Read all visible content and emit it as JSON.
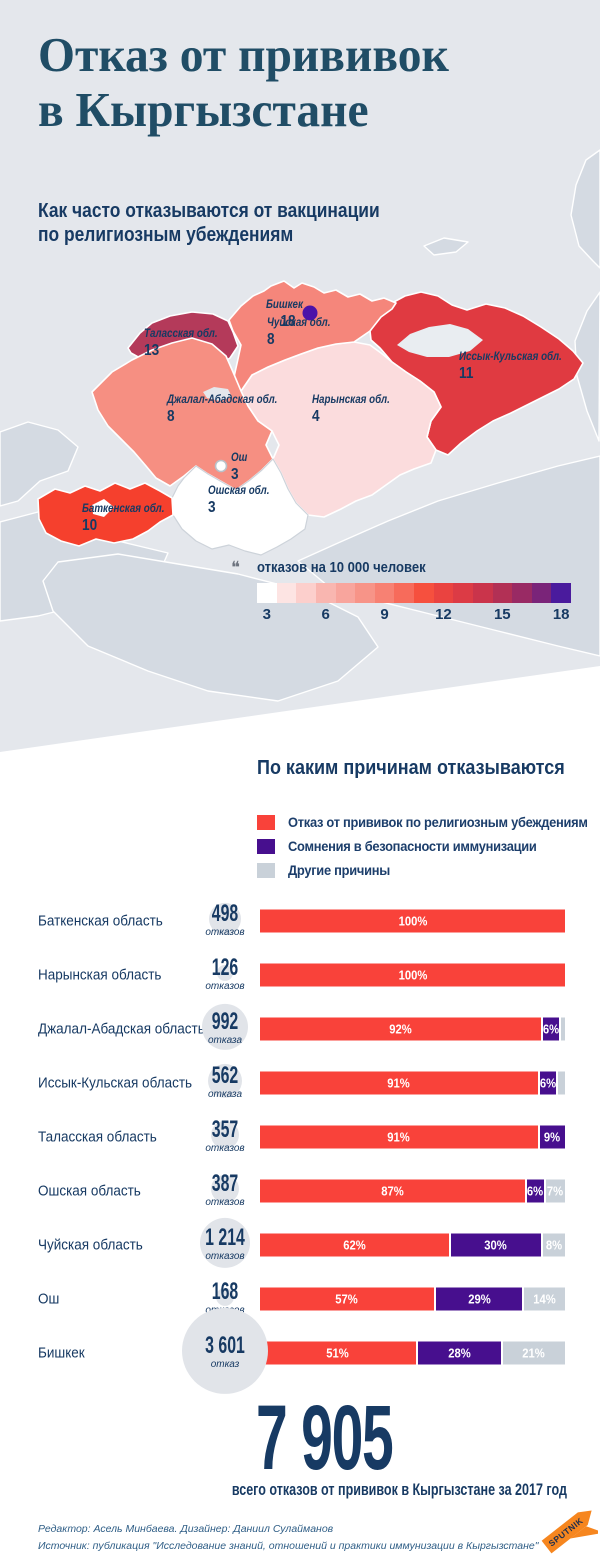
{
  "header": {
    "title_line1": "Отказ от прививок",
    "title_line2": "в Кыргызстане",
    "subtitle_line1": "Как часто отказываются от вакцинации",
    "subtitle_line2": "по религиозным убеждениям"
  },
  "map": {
    "legend_title": "отказов на 10 000 человек",
    "scale_ticks": [
      "3",
      "6",
      "9",
      "12",
      "15",
      "18"
    ],
    "scale_tick_values": [
      3,
      6,
      9,
      12,
      15,
      18
    ],
    "scale_colors": [
      "#ffffff",
      "#fde4e3",
      "#fccfcc",
      "#f9b6b0",
      "#f8a59d",
      "#f79488",
      "#f78173",
      "#f76b5b",
      "#f6503e",
      "#ea4340",
      "#dc3b45",
      "#ca344b",
      "#b23055",
      "#992a64",
      "#7a2479",
      "#4a1b9d"
    ],
    "regions": [
      {
        "id": "bishkek",
        "name": "Бишкек",
        "value": "18",
        "color": "#4b12a8"
      },
      {
        "id": "talas",
        "name": "Таласская обл.",
        "value": "13",
        "color": "#b43a5a"
      },
      {
        "id": "chui",
        "name": "Чуйская обл.",
        "value": "8",
        "color": "#f5867b"
      },
      {
        "id": "issyk-kul",
        "name": "Иссык-Кульская обл.",
        "value": "11",
        "color": "#e03a41"
      },
      {
        "id": "jalal-abad",
        "name": "Джалал-Абадская обл.",
        "value": "8",
        "color": "#f68f82"
      },
      {
        "id": "naryn",
        "name": "Нарынская обл.",
        "value": "4",
        "color": "#fbdcdd"
      },
      {
        "id": "osh-city",
        "name": "Ош",
        "value": "3",
        "color": "#ffffff"
      },
      {
        "id": "osh-region",
        "name": "Ошская обл.",
        "value": "3",
        "color": "#ffffff"
      },
      {
        "id": "batken",
        "name": "Баткенская обл.",
        "value": "10",
        "color": "#f5402d"
      }
    ]
  },
  "reasons": {
    "title": "По каким причинам отказываются",
    "legend": [
      {
        "label": "Отказ от прививок по религиозным убеждениям",
        "color": "#f9423a"
      },
      {
        "label": "Сомнения в безопасности иммунизации",
        "color": "#470f8e"
      },
      {
        "label": "Другие причины",
        "color": "#c9d1d9"
      }
    ],
    "rows": [
      {
        "region": "Баткенская область",
        "count": "498",
        "count_word": "отказов",
        "segments": [
          100,
          0,
          0
        ]
      },
      {
        "region": "Нарынская область",
        "count": "126",
        "count_word": "отказов",
        "segments": [
          100,
          0,
          0
        ]
      },
      {
        "region": "Джалал-Абадская область",
        "count": "992",
        "count_word": "отказа",
        "segments": [
          92,
          6,
          2
        ]
      },
      {
        "region": "Иссык-Кульская область",
        "count": "562",
        "count_word": "отказа",
        "segments": [
          91,
          6,
          3
        ]
      },
      {
        "region": "Таласская область",
        "count": "357",
        "count_word": "отказов",
        "segments": [
          91,
          9,
          0
        ]
      },
      {
        "region": "Ошская область",
        "count": "387",
        "count_word": "отказов",
        "segments": [
          87,
          6,
          7
        ]
      },
      {
        "region": "Чуйская область",
        "count": "1 214",
        "count_word": "отказов",
        "segments": [
          62,
          30,
          8
        ]
      },
      {
        "region": "Ош",
        "count": "168",
        "count_word": "отказов",
        "segments": [
          57,
          29,
          14
        ]
      },
      {
        "region": "Бишкек",
        "count": "3 601",
        "count_word": "отказ",
        "segments": [
          51,
          28,
          21
        ]
      }
    ]
  },
  "total": {
    "value": "7 905",
    "caption": "всего отказов от прививок в Кыргызстане за 2017 год"
  },
  "footer": {
    "line1": "Редактор: Асель Минбаева. Дизайнер: Даниил Сулайманов",
    "line2": "Источник: публикация \"Исследование знаний, отношений и практики иммунизации в Кыргызстане\"",
    "logo_text": "SPUTNIK",
    "logo_color": "#f6861f"
  },
  "chart_data": [
    {
      "type": "heatmap",
      "subtype": "choropleth-map",
      "title": "Как часто отказываются от вакцинации по религиозным убеждениям",
      "unit": "отказов на 10 000 человек",
      "scale_range": [
        3,
        18
      ],
      "regions": [
        {
          "name": "Бишкек",
          "value": 18
        },
        {
          "name": "Таласская обл.",
          "value": 13
        },
        {
          "name": "Иссык-Кульская обл.",
          "value": 11
        },
        {
          "name": "Баткенская обл.",
          "value": 10
        },
        {
          "name": "Чуйская обл.",
          "value": 8
        },
        {
          "name": "Джалал-Абадская обл.",
          "value": 8
        },
        {
          "name": "Нарынская обл.",
          "value": 4
        },
        {
          "name": "Ош",
          "value": 3
        },
        {
          "name": "Ошская обл.",
          "value": 3
        }
      ]
    },
    {
      "type": "bar",
      "subtype": "horizontal-stacked-percent",
      "title": "По каким причинам отказываются",
      "categories": [
        "Баткенская область",
        "Нарынская область",
        "Джалал-Абадская область",
        "Иссык-Кульская область",
        "Таласская область",
        "Ошская область",
        "Чуйская область",
        "Ош",
        "Бишкек"
      ],
      "counts": [
        498,
        126,
        992,
        562,
        357,
        387,
        1214,
        168,
        3601
      ],
      "counts_unit": "отказов",
      "series": [
        {
          "name": "Отказ от прививок по религиозным убеждениям",
          "color": "#f9423a",
          "values": [
            100,
            100,
            92,
            91,
            91,
            87,
            62,
            57,
            51
          ]
        },
        {
          "name": "Сомнения в безопасности иммунизации",
          "color": "#470f8e",
          "values": [
            0,
            0,
            6,
            6,
            9,
            6,
            30,
            29,
            28
          ]
        },
        {
          "name": "Другие причины",
          "color": "#c9d1d9",
          "values": [
            0,
            0,
            2,
            3,
            0,
            7,
            8,
            14,
            21
          ]
        }
      ],
      "xlim": [
        0,
        100
      ],
      "legend_position": "top",
      "total": 7905,
      "total_caption": "всего отказов от прививок в Кыргызстане за 2017 год"
    }
  ]
}
